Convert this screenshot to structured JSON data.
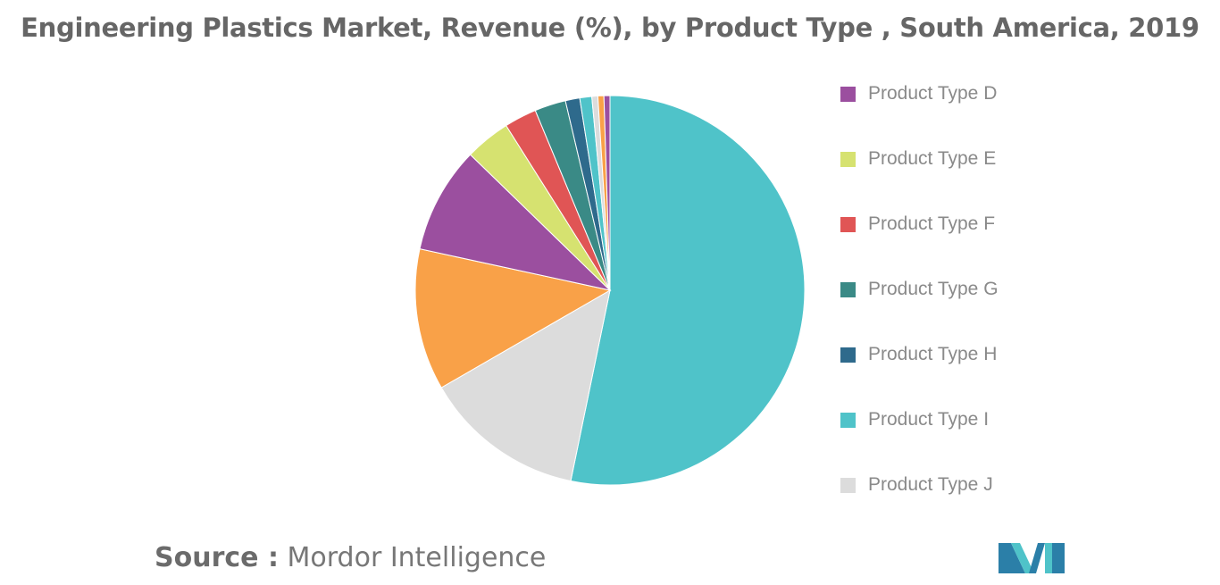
{
  "chart_data": {
    "type": "pie",
    "title": "Engineering Plastics Market, Revenue (%), by Product Type , South America, 2019",
    "slices": [
      {
        "label": "Product Type I",
        "value": 53.5,
        "color": "#4FC3C9",
        "in_legend": true
      },
      {
        "label": "Product Type J",
        "value": 13.5,
        "color": "#DCDCDC",
        "in_legend": true
      },
      {
        "label": "",
        "value": 11.8,
        "color": "#F9A148",
        "in_legend": false
      },
      {
        "label": "Product Type D",
        "value": 8.9,
        "color": "#9B4F9F",
        "in_legend": true
      },
      {
        "label": "Product Type E",
        "value": 3.8,
        "color": "#D6E270",
        "in_legend": true
      },
      {
        "label": "Product Type F",
        "value": 2.7,
        "color": "#E05555",
        "in_legend": true
      },
      {
        "label": "Product Type G",
        "value": 2.6,
        "color": "#3A8A86",
        "in_legend": true
      },
      {
        "label": "Product Type H",
        "value": 1.2,
        "color": "#2E6A8C",
        "in_legend": true
      },
      {
        "label": "",
        "value": 1.0,
        "color": "#4FC3C9",
        "in_legend": false
      },
      {
        "label": "",
        "value": 0.5,
        "color": "#DCDCDC",
        "in_legend": false
      },
      {
        "label": "",
        "value": 0.5,
        "color": "#F9A148",
        "in_legend": false
      },
      {
        "label": "",
        "value": 0.5,
        "color": "#9B4F9F",
        "in_legend": false
      }
    ],
    "legend": {
      "position": "right",
      "items": [
        {
          "label": "Product Type D",
          "color": "#9B4F9F"
        },
        {
          "label": "Product Type E",
          "color": "#D6E270"
        },
        {
          "label": "Product Type F",
          "color": "#E05555"
        },
        {
          "label": "Product Type G",
          "color": "#3A8A86"
        },
        {
          "label": "Product Type H",
          "color": "#2E6A8C"
        },
        {
          "label": "Product Type I",
          "color": "#4FC3C9"
        },
        {
          "label": "Product Type J",
          "color": "#DCDCDC"
        }
      ]
    }
  },
  "source": {
    "prefix": "Source :",
    "name": "Mordor Intelligence"
  }
}
